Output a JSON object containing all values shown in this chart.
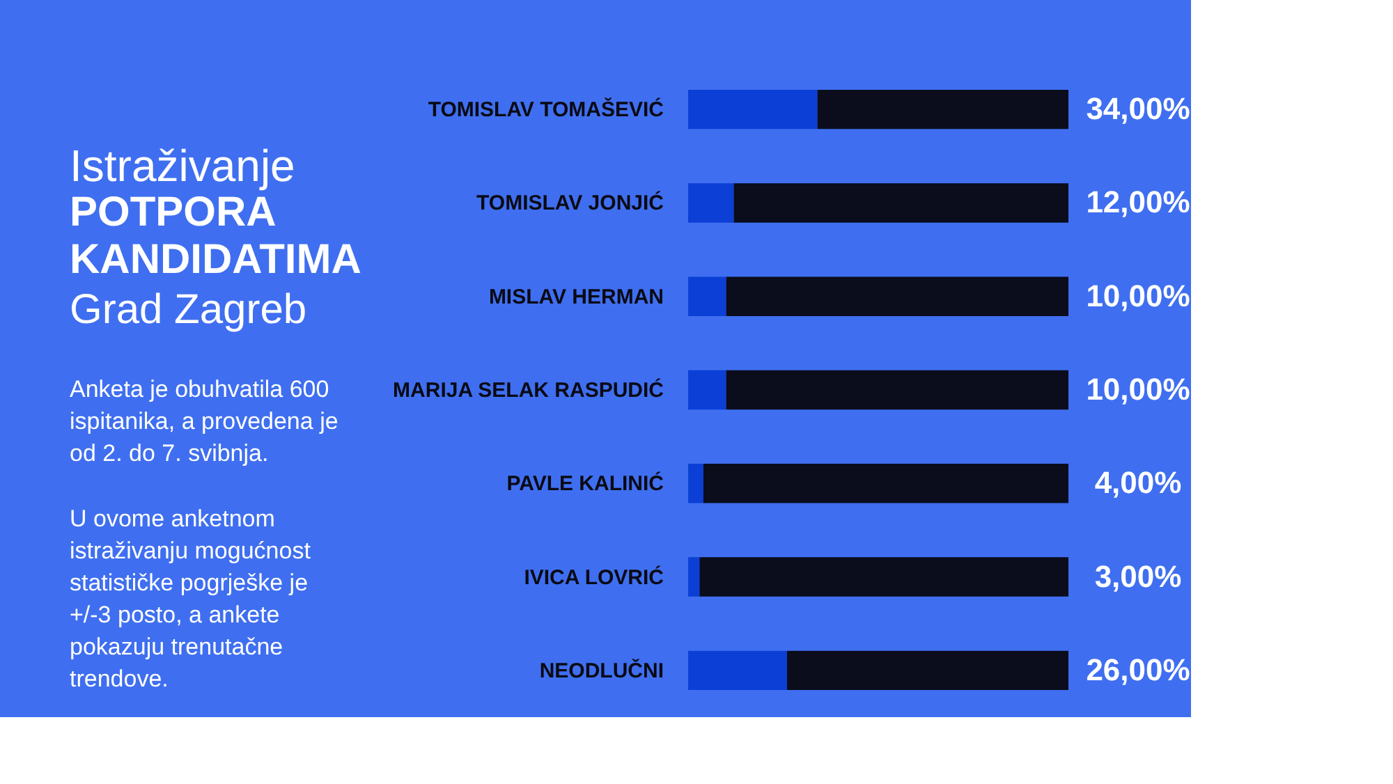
{
  "chart_data": {
    "type": "bar",
    "orientation": "horizontal",
    "stacked": true,
    "title": "POTPORA KANDIDATIMA",
    "subtitle": "Grad Zagreb",
    "annotations": [
      "Istraživanje",
      "Anketa je obuhvatila 600 ispitanika, a provedena je od 2. do 7. svibnja.",
      "U ovome anketnom istraživanju mogućnost statističke pogrješke je +/-3 posto, a ankete pokazuju trenutačne trendove."
    ],
    "categories": [
      "TOMISLAV TOMAŠEVIĆ",
      "TOMISLAV JONJIĆ",
      "MISLAV HERMAN",
      "MARIJA SELAK RASPUDIĆ",
      "PAVLE KALINIĆ",
      "IVICA LOVRIĆ",
      "NEODLUČNI"
    ],
    "series": [
      {
        "color": "#0b3fd6",
        "values": [
          34,
          12,
          10,
          10,
          4,
          3,
          26
        ],
        "value_labels": [
          "34,00%",
          "12,00%",
          "10,00%",
          "10,00%",
          "4,00%",
          "3,00%",
          "26,00%"
        ]
      },
      {
        "color": "#0b0c1c",
        "values": [
          66,
          88,
          90,
          90,
          96,
          97,
          74
        ]
      }
    ],
    "xlim": [
      0,
      100
    ],
    "tick_labels": "y"
  }
}
